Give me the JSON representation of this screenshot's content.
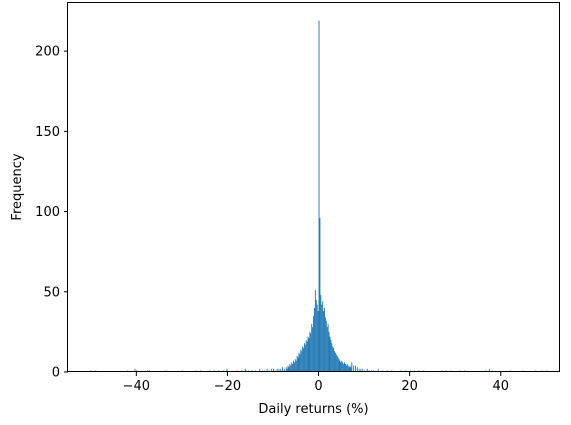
{
  "chart_data": {
    "type": "histogram",
    "title": "",
    "xlabel": "Daily returns (%)",
    "ylabel": "Frequency",
    "xlim": [
      -55,
      53
    ],
    "ylim": [
      0,
      230
    ],
    "xticks": [
      -40,
      -20,
      0,
      20,
      40
    ],
    "yticks": [
      0,
      50,
      100,
      150,
      200
    ],
    "xtick_labels": [
      "−40",
      "−20",
      "0",
      "20",
      "40"
    ],
    "ytick_labels": [
      "0",
      "50",
      "100",
      "150",
      "200"
    ],
    "grid": false,
    "legend": "none",
    "bar_color": "#1f77b4",
    "bin_width": 0.2,
    "bins": [
      [
        -50.0,
        1
      ],
      [
        -49.0,
        1
      ],
      [
        -42.0,
        1
      ],
      [
        -40.4,
        2
      ],
      [
        -40.0,
        1
      ],
      [
        -37.6,
        1
      ],
      [
        -37.2,
        1
      ],
      [
        -33.6,
        1
      ],
      [
        -30.0,
        1
      ],
      [
        -27.0,
        1
      ],
      [
        -26.0,
        1
      ],
      [
        -24.0,
        1
      ],
      [
        -23.0,
        1
      ],
      [
        -22.0,
        1
      ],
      [
        -21.0,
        1
      ],
      [
        -20.2,
        2
      ],
      [
        -18.0,
        1
      ],
      [
        -17.0,
        1
      ],
      [
        -16.2,
        2
      ],
      [
        -16.0,
        1
      ],
      [
        -15.4,
        1
      ],
      [
        -14.6,
        1
      ],
      [
        -14.0,
        1
      ],
      [
        -13.0,
        2
      ],
      [
        -12.4,
        1
      ],
      [
        -12.0,
        1
      ],
      [
        -11.4,
        2
      ],
      [
        -11.0,
        1
      ],
      [
        -10.4,
        2
      ],
      [
        -10.0,
        2
      ],
      [
        -9.6,
        1
      ],
      [
        -9.2,
        2
      ],
      [
        -8.8,
        2
      ],
      [
        -8.4,
        2
      ],
      [
        -8.0,
        3
      ],
      [
        -7.6,
        2
      ],
      [
        -7.2,
        3
      ],
      [
        -7.0,
        2
      ],
      [
        -6.8,
        4
      ],
      [
        -6.6,
        3
      ],
      [
        -6.4,
        5
      ],
      [
        -6.2,
        4
      ],
      [
        -6.0,
        6
      ],
      [
        -5.8,
        5
      ],
      [
        -5.6,
        7
      ],
      [
        -5.4,
        6
      ],
      [
        -5.2,
        8
      ],
      [
        -5.0,
        7
      ],
      [
        -4.8,
        10
      ],
      [
        -4.6,
        9
      ],
      [
        -4.4,
        12
      ],
      [
        -4.2,
        11
      ],
      [
        -4.0,
        14
      ],
      [
        -3.8,
        13
      ],
      [
        -3.6,
        16
      ],
      [
        -3.4,
        15
      ],
      [
        -3.2,
        18
      ],
      [
        -3.0,
        17
      ],
      [
        -2.8,
        20
      ],
      [
        -2.6,
        19
      ],
      [
        -2.4,
        22
      ],
      [
        -2.2,
        21
      ],
      [
        -2.0,
        25
      ],
      [
        -1.8,
        24
      ],
      [
        -1.6,
        30
      ],
      [
        -1.4,
        28
      ],
      [
        -1.2,
        35
      ],
      [
        -1.0,
        40
      ],
      [
        -0.8,
        51
      ],
      [
        -0.6,
        45
      ],
      [
        -0.4,
        42
      ],
      [
        -0.2,
        38
      ],
      [
        0.0,
        219
      ],
      [
        0.2,
        96
      ],
      [
        0.4,
        48
      ],
      [
        0.6,
        42
      ],
      [
        0.8,
        44
      ],
      [
        1.0,
        38
      ],
      [
        1.2,
        40
      ],
      [
        1.4,
        34
      ],
      [
        1.6,
        32
      ],
      [
        1.8,
        28
      ],
      [
        2.0,
        30
      ],
      [
        2.2,
        25
      ],
      [
        2.4,
        22
      ],
      [
        2.6,
        20
      ],
      [
        2.8,
        18
      ],
      [
        3.0,
        16
      ],
      [
        3.2,
        15
      ],
      [
        3.4,
        13
      ],
      [
        3.6,
        12
      ],
      [
        3.8,
        11
      ],
      [
        4.0,
        10
      ],
      [
        4.2,
        9
      ],
      [
        4.4,
        8
      ],
      [
        4.6,
        7
      ],
      [
        4.8,
        6
      ],
      [
        5.0,
        7
      ],
      [
        5.2,
        6
      ],
      [
        5.4,
        5
      ],
      [
        5.6,
        6
      ],
      [
        5.8,
        5
      ],
      [
        6.0,
        4
      ],
      [
        6.2,
        5
      ],
      [
        6.4,
        4
      ],
      [
        6.6,
        3
      ],
      [
        6.8,
        4
      ],
      [
        7.0,
        3
      ],
      [
        7.2,
        6
      ],
      [
        7.6,
        4
      ],
      [
        8.0,
        4
      ],
      [
        8.4,
        3
      ],
      [
        8.8,
        2
      ],
      [
        9.2,
        2
      ],
      [
        9.6,
        2
      ],
      [
        10.0,
        1
      ],
      [
        10.6,
        2
      ],
      [
        11.0,
        1
      ],
      [
        11.6,
        1
      ],
      [
        12.0,
        1
      ],
      [
        13.0,
        2
      ],
      [
        14.0,
        1
      ],
      [
        15.0,
        1
      ],
      [
        16.0,
        1
      ],
      [
        18.0,
        1
      ],
      [
        19.0,
        1
      ],
      [
        20.0,
        1
      ],
      [
        21.0,
        1
      ],
      [
        22.0,
        1
      ],
      [
        23.0,
        1
      ],
      [
        27.0,
        1
      ],
      [
        28.0,
        1
      ],
      [
        29.0,
        1
      ],
      [
        31.0,
        1
      ],
      [
        32.0,
        1
      ],
      [
        36.6,
        1
      ],
      [
        37.4,
        2
      ],
      [
        38.0,
        1
      ],
      [
        42.0,
        1
      ],
      [
        44.8,
        1
      ],
      [
        47.6,
        1
      ],
      [
        49.0,
        1
      ],
      [
        50.0,
        1
      ]
    ]
  }
}
